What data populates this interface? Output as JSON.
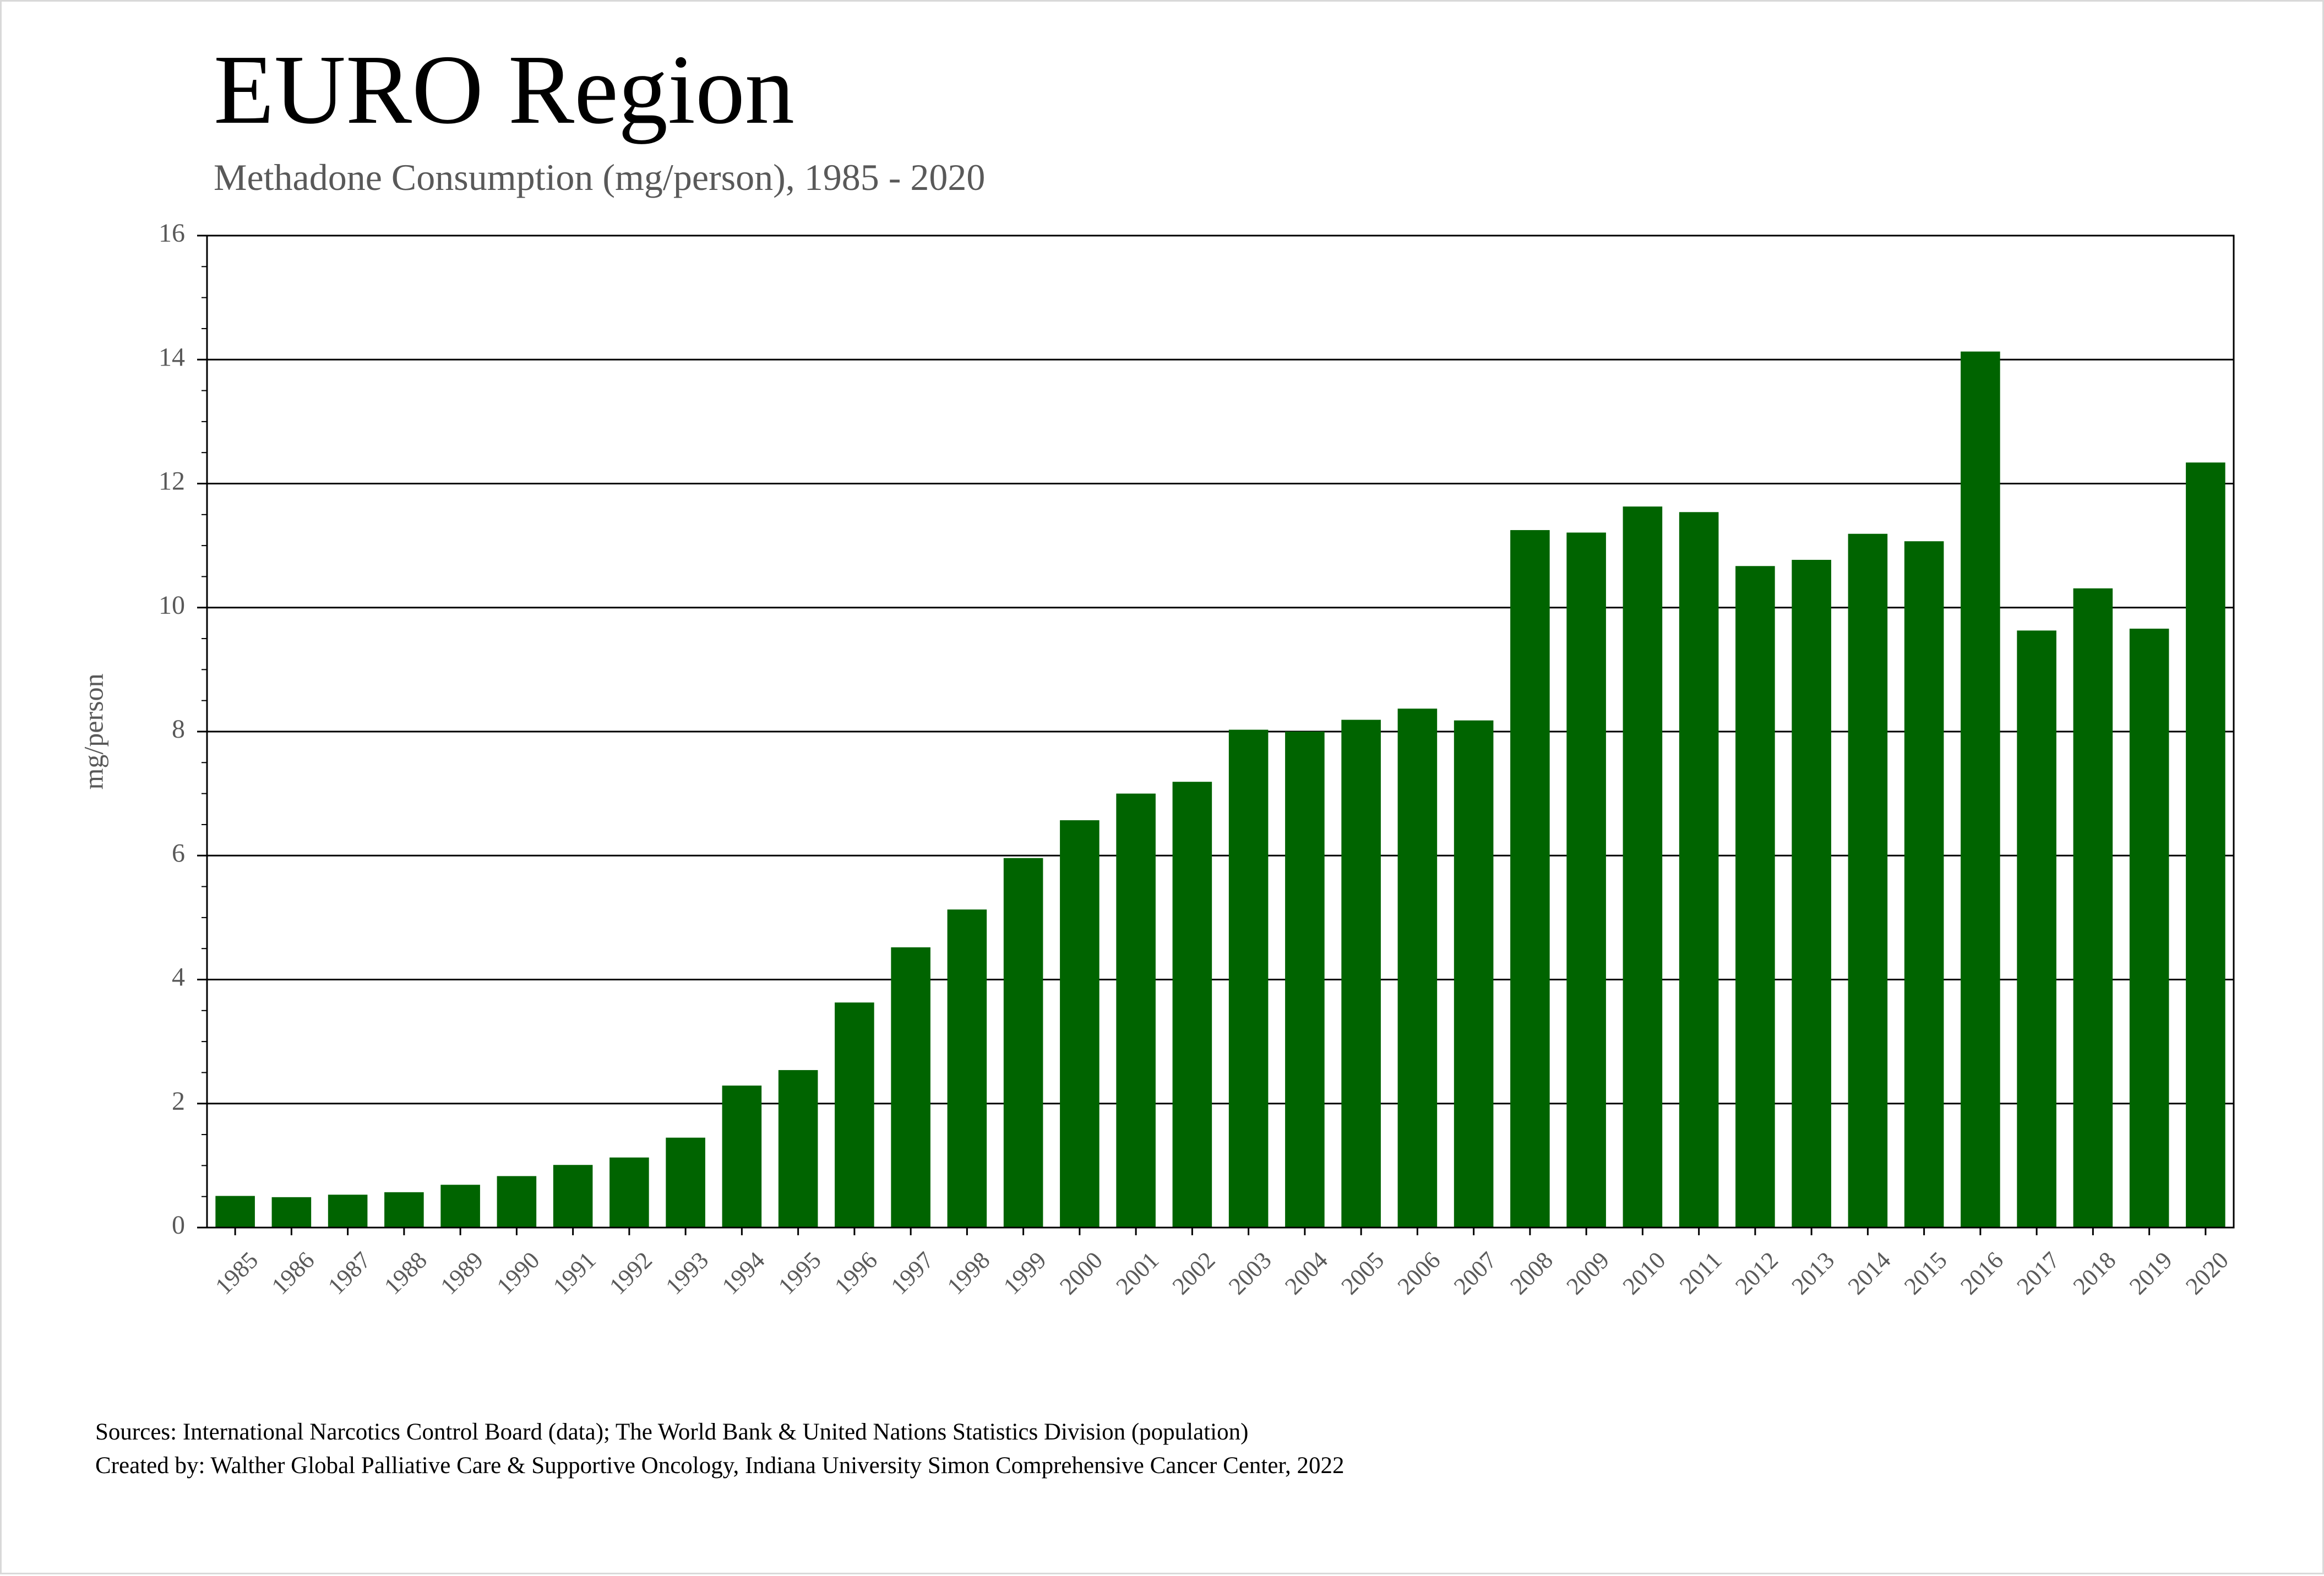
{
  "title": "EURO Region",
  "subtitle": "Methadone Consumption (mg/person), 1985 - 2020",
  "footer": {
    "sources": "Sources: International Narcotics Control Board (data); The World Bank & United Nations Statistics Division (population)",
    "created_by": "Created by: Walther Global Palliative Care & Supportive Oncology, Indiana University Simon Comprehensive Cancer Center, 2022"
  },
  "colors": {
    "bar": "#006400",
    "gridline": "#000000",
    "axis_text": "#595959"
  },
  "chart_data": {
    "type": "bar",
    "ylabel": "mg/person",
    "ylim": [
      0,
      16
    ],
    "yticks": [
      0,
      2,
      4,
      6,
      8,
      10,
      12,
      14,
      16
    ],
    "grid": true,
    "legend": "none",
    "categories": [
      "1985",
      "1986",
      "1987",
      "1988",
      "1989",
      "1990",
      "1991",
      "1992",
      "1993",
      "1994",
      "1995",
      "1996",
      "1997",
      "1998",
      "1999",
      "2000",
      "2001",
      "2002",
      "2003",
      "2004",
      "2005",
      "2006",
      "2007",
      "2008",
      "2009",
      "2010",
      "2011",
      "2012",
      "2013",
      "2014",
      "2015",
      "2016",
      "2017",
      "2018",
      "2019",
      "2020"
    ],
    "values": [
      0.51,
      0.49,
      0.53,
      0.57,
      0.69,
      0.83,
      1.01,
      1.13,
      1.45,
      2.29,
      2.54,
      3.63,
      4.52,
      5.13,
      5.96,
      6.57,
      7.0,
      7.19,
      8.03,
      8.0,
      8.19,
      8.37,
      8.18,
      11.25,
      11.21,
      11.63,
      11.54,
      10.67,
      10.77,
      11.19,
      11.07,
      14.13,
      9.63,
      10.31,
      9.66,
      12.34
    ]
  }
}
